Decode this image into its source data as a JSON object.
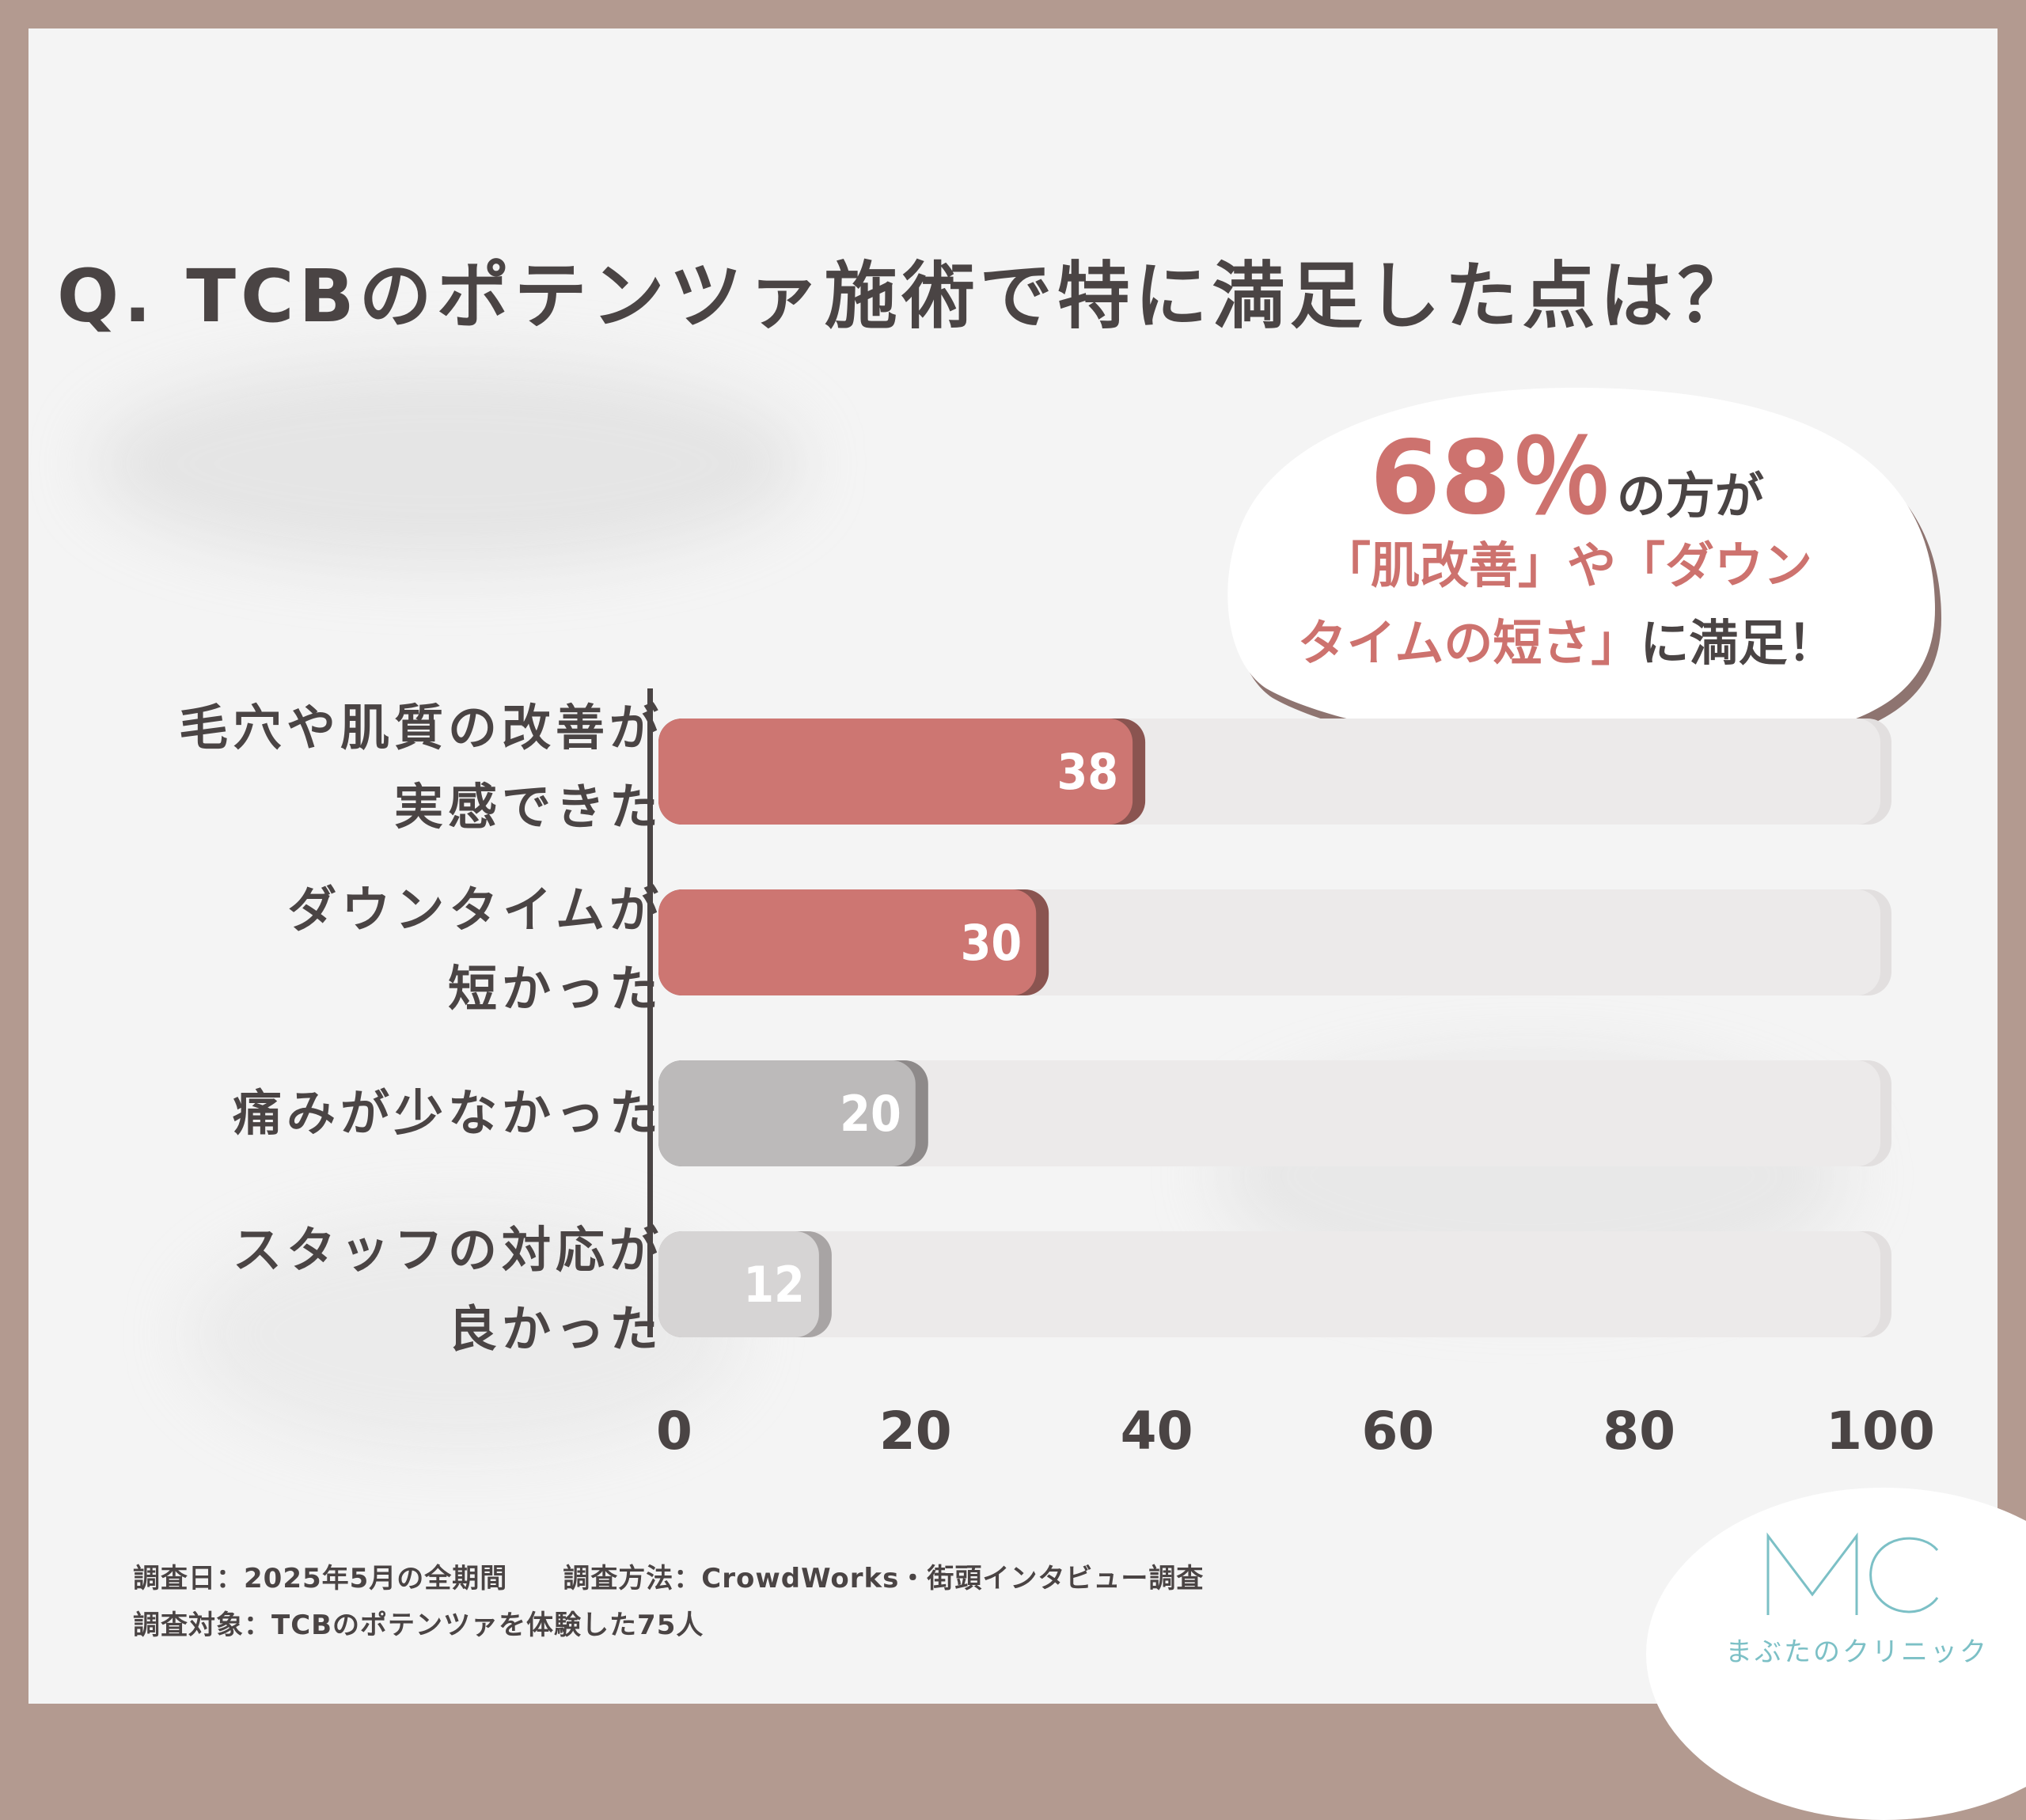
{
  "title": "Q. TCBのポテンツァ施術で特に満足した点は？",
  "callout": {
    "percent": "68％",
    "line1_suffix": "の方が",
    "line2": "「肌改善」や「ダウン",
    "line3_pink": "タイムの短さ」",
    "line3_suffix": "に満足！"
  },
  "chart_data": {
    "type": "bar",
    "orientation": "horizontal",
    "categories": [
      [
        "毛穴や肌質の改善が",
        "実感できた"
      ],
      [
        "ダウンタイムが",
        "短かった"
      ],
      [
        "痛みが少なかった"
      ],
      [
        "スタッフの対応が",
        "良かった"
      ]
    ],
    "values": [
      38,
      30,
      20,
      12
    ],
    "value_labels": [
      "38",
      "30",
      "20",
      "12"
    ],
    "bar_colors": [
      "#cd7672",
      "#cd7672",
      "#bcbaba",
      "#d6d4d4"
    ],
    "bar_shadow_colors": [
      "#8a5450",
      "#8a5450",
      "#8e8a8a",
      "#a8a4a4"
    ],
    "track_color": "#eceaea",
    "xlim": [
      0,
      100
    ],
    "xticks": [
      "0",
      "20",
      "40",
      "60",
      "80",
      "100"
    ],
    "grid": false,
    "legend": "none"
  },
  "footer": {
    "line1": "調査日：2025年5月の全期間　　調査方法：CrowdWorks・街頭インタビュー調査",
    "line2": "調査対象：TCBのポテンツァを体験した75人"
  },
  "logo": {
    "mark": "MC",
    "name": "まぶたのクリニック",
    "color": "#7cc0c6"
  }
}
